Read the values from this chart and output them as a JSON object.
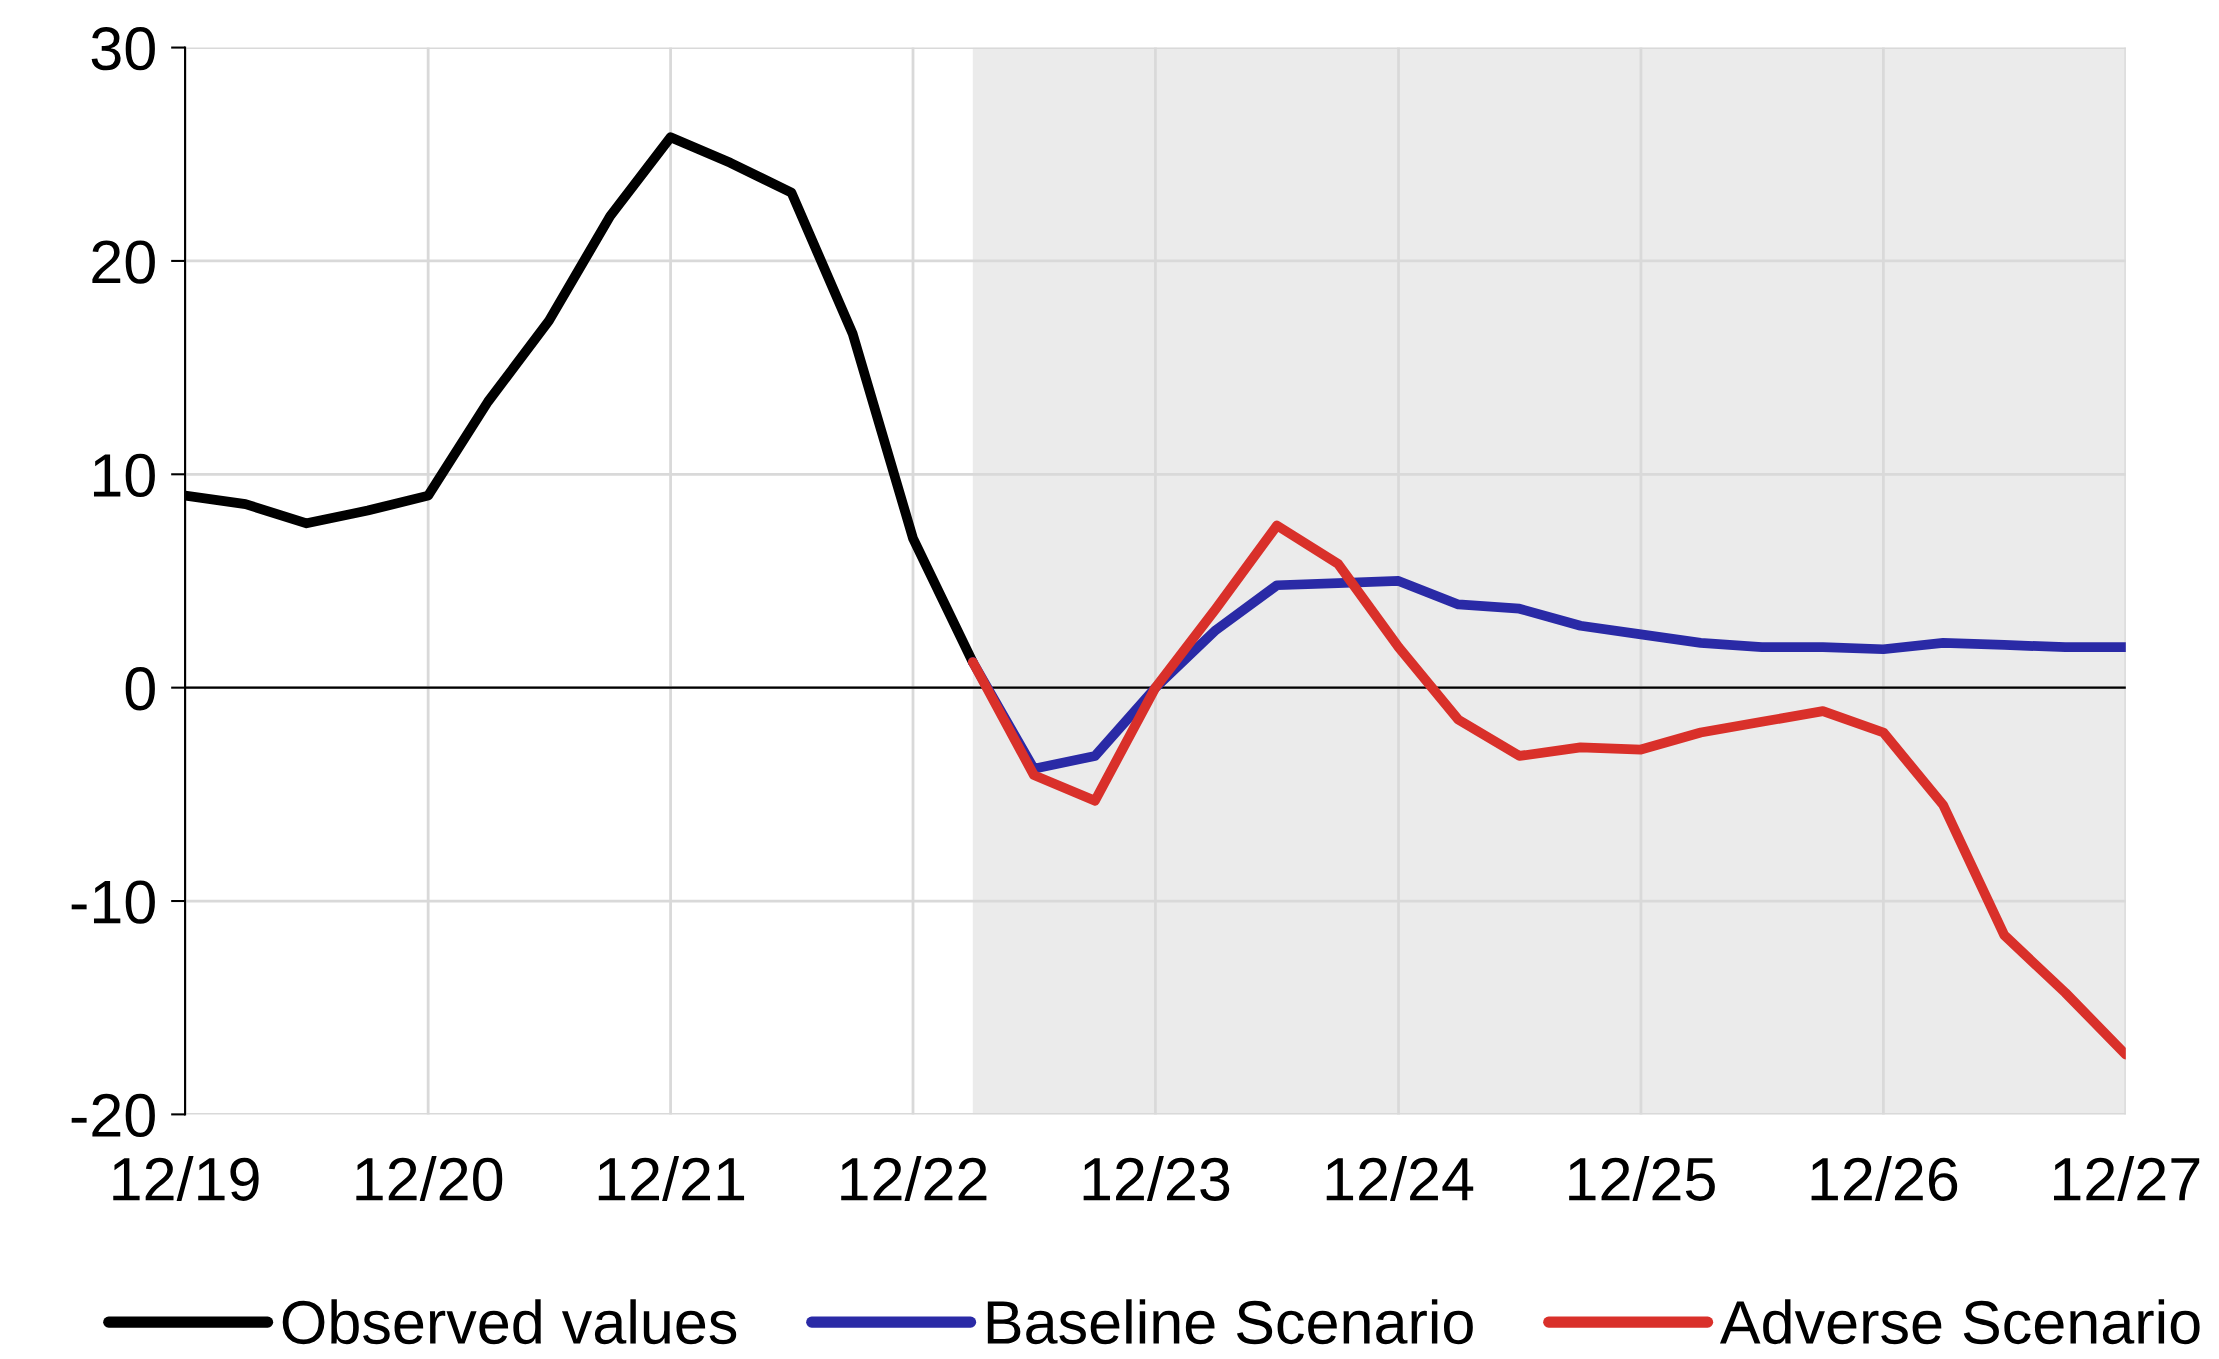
{
  "chart_data": {
    "type": "line",
    "series": [
      {
        "name": "Observed values",
        "color": "#000000",
        "x": [
          "2019-12",
          "2020-03",
          "2020-06",
          "2020-09",
          "2020-12",
          "2021-03",
          "2021-06",
          "2021-09",
          "2021-12",
          "2022-03",
          "2022-06",
          "2022-09",
          "2022-12",
          "2023-03"
        ],
        "values": [
          9.0,
          8.6,
          7.7,
          8.3,
          9.0,
          13.4,
          17.2,
          22.1,
          25.8,
          24.6,
          23.2,
          16.6,
          7.0,
          1.2
        ]
      },
      {
        "name": "Baseline Scenario",
        "color": "#2a2aa6",
        "x": [
          "2023-03",
          "2023-06",
          "2023-09",
          "2023-12",
          "2024-03",
          "2024-06",
          "2024-09",
          "2024-12",
          "2025-03",
          "2025-06",
          "2025-09",
          "2025-12",
          "2026-03",
          "2026-06",
          "2026-09",
          "2026-12",
          "2027-03",
          "2027-06",
          "2027-09",
          "2027-12"
        ],
        "values": [
          1.2,
          -3.8,
          -3.2,
          0.0,
          2.7,
          4.8,
          4.9,
          5.0,
          3.9,
          3.7,
          2.9,
          2.5,
          2.1,
          1.9,
          1.9,
          1.8,
          2.1,
          2.0,
          1.9,
          1.9
        ]
      },
      {
        "name": "Adverse Scenario",
        "color": "#d9302a",
        "x": [
          "2023-03",
          "2023-06",
          "2023-09",
          "2023-12",
          "2024-03",
          "2024-06",
          "2024-09",
          "2024-12",
          "2025-03",
          "2025-06",
          "2025-09",
          "2025-12",
          "2026-03",
          "2026-06",
          "2026-09",
          "2026-12",
          "2027-03",
          "2027-06",
          "2027-09",
          "2027-12"
        ],
        "values": [
          1.2,
          -4.1,
          -5.3,
          0.0,
          3.7,
          7.6,
          5.8,
          1.9,
          -1.5,
          -3.2,
          -2.8,
          -2.9,
          -2.1,
          -1.6,
          -1.1,
          -2.1,
          -5.5,
          -11.6,
          -14.3,
          -17.2
        ]
      }
    ],
    "xlim": [
      "2019-12",
      "2027-12"
    ],
    "xticks": [
      {
        "value": "2019-12",
        "label": "12/19"
      },
      {
        "value": "2020-12",
        "label": "12/20"
      },
      {
        "value": "2021-12",
        "label": "12/21"
      },
      {
        "value": "2022-12",
        "label": "12/22"
      },
      {
        "value": "2023-12",
        "label": "12/23"
      },
      {
        "value": "2024-12",
        "label": "12/24"
      },
      {
        "value": "2025-12",
        "label": "12/25"
      },
      {
        "value": "2026-12",
        "label": "12/26"
      },
      {
        "value": "2027-12",
        "label": "12/27"
      }
    ],
    "ylim": [
      -20,
      30
    ],
    "yticks": [
      -20,
      -10,
      0,
      10,
      20,
      30
    ],
    "ref_lines": [
      {
        "axis": "y",
        "value": 0,
        "color": "#000000"
      }
    ],
    "bands": [
      {
        "axis": "x",
        "from": "2023-03",
        "to": "2027-12",
        "color": "#ebebeb"
      }
    ],
    "grid": true,
    "legend": "bottom",
    "marker": "none",
    "line_style": "solid"
  }
}
